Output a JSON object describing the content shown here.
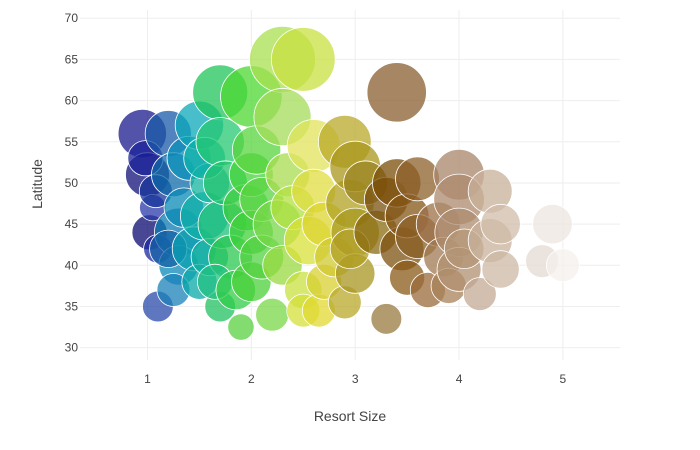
{
  "chart_data": {
    "type": "scatter",
    "title": "",
    "xlabel": "Resort Size",
    "ylabel": "Latitude",
    "xlim": [
      0.35,
      5.55
    ],
    "ylim": [
      28.5,
      71
    ],
    "xticks": [
      1,
      2,
      3,
      4,
      5
    ],
    "yticks": [
      30,
      35,
      40,
      45,
      50,
      55,
      60,
      65,
      70
    ],
    "grid": true,
    "legend": "none",
    "marker_opacity": 0.75,
    "marker_outline_color": "#ffffff",
    "color_scale_note": "marker color varies by resort size: navy/blue (1) -> teal (1.5) -> green (2) -> yellow (2.5-3) -> brown (3.5) -> tan/white (4-5)",
    "series": [
      {
        "points": [
          {
            "x": 0.95,
            "y": 56,
            "size": 2.2,
            "color": "#1a1a8c"
          },
          {
            "x": 1.0,
            "y": 51,
            "size": 2.0,
            "color": "#10107a"
          },
          {
            "x": 0.98,
            "y": 53,
            "size": 1.6,
            "color": "#1a2299"
          },
          {
            "x": 1.02,
            "y": 44,
            "size": 1.6,
            "color": "#0a0a70"
          },
          {
            "x": 1.05,
            "y": 47,
            "size": 1.2,
            "color": "#2a3aa8"
          },
          {
            "x": 1.1,
            "y": 42,
            "size": 1.3,
            "color": "#1e2aa0"
          },
          {
            "x": 1.1,
            "y": 35,
            "size": 1.4,
            "color": "#2a4aa8"
          },
          {
            "x": 1.08,
            "y": 49,
            "size": 1.5,
            "color": "#16349a"
          },
          {
            "x": 1.2,
            "y": 56,
            "size": 2.1,
            "color": "#1a5aa8"
          },
          {
            "x": 1.25,
            "y": 51,
            "size": 2.0,
            "color": "#0f6aa8"
          },
          {
            "x": 1.3,
            "y": 44,
            "size": 2.2,
            "color": "#0a7ab0"
          },
          {
            "x": 1.3,
            "y": 40,
            "size": 1.8,
            "color": "#0a88b8"
          },
          {
            "x": 1.25,
            "y": 37,
            "size": 1.5,
            "color": "#1a80b8"
          },
          {
            "x": 1.35,
            "y": 47,
            "size": 1.8,
            "color": "#0a8ab5"
          },
          {
            "x": 1.4,
            "y": 53,
            "size": 2.0,
            "color": "#0a90b8"
          },
          {
            "x": 1.2,
            "y": 42,
            "size": 1.7,
            "color": "#1560a5"
          },
          {
            "x": 1.45,
            "y": 42,
            "size": 2.0,
            "color": "#0aa0b0"
          },
          {
            "x": 1.5,
            "y": 57,
            "size": 2.2,
            "color": "#0aa8b8"
          },
          {
            "x": 1.5,
            "y": 38,
            "size": 1.6,
            "color": "#0aa8a8"
          },
          {
            "x": 1.55,
            "y": 46,
            "size": 2.2,
            "color": "#10b0a8"
          },
          {
            "x": 1.6,
            "y": 50,
            "size": 1.8,
            "color": "#14b4a0"
          },
          {
            "x": 1.6,
            "y": 41,
            "size": 1.7,
            "color": "#12b0a0"
          },
          {
            "x": 1.55,
            "y": 53,
            "size": 1.9,
            "color": "#0eb2a8"
          },
          {
            "x": 1.7,
            "y": 61,
            "size": 2.5,
            "color": "#20c45a"
          },
          {
            "x": 1.7,
            "y": 55,
            "size": 2.2,
            "color": "#24c870"
          },
          {
            "x": 1.7,
            "y": 35,
            "size": 1.4,
            "color": "#22c060"
          },
          {
            "x": 1.72,
            "y": 45,
            "size": 2.2,
            "color": "#1ec078"
          },
          {
            "x": 1.75,
            "y": 50,
            "size": 2.0,
            "color": "#22c46c"
          },
          {
            "x": 1.8,
            "y": 41,
            "size": 2.0,
            "color": "#2ac850"
          },
          {
            "x": 1.65,
            "y": 38,
            "size": 1.6,
            "color": "#20c080"
          },
          {
            "x": 1.85,
            "y": 37,
            "size": 1.8,
            "color": "#30cc48"
          },
          {
            "x": 1.9,
            "y": 32.5,
            "size": 1.2,
            "color": "#5ad040"
          },
          {
            "x": 1.95,
            "y": 47,
            "size": 2.1,
            "color": "#3ccc40"
          },
          {
            "x": 2.0,
            "y": 60.5,
            "size": 2.8,
            "color": "#4cd830"
          },
          {
            "x": 2.0,
            "y": 44,
            "size": 2.0,
            "color": "#40d038"
          },
          {
            "x": 2.0,
            "y": 51,
            "size": 2.0,
            "color": "#46d43a"
          },
          {
            "x": 2.0,
            "y": 38,
            "size": 1.8,
            "color": "#4ad038"
          },
          {
            "x": 2.05,
            "y": 54,
            "size": 2.2,
            "color": "#56d43c"
          },
          {
            "x": 2.1,
            "y": 41,
            "size": 2.0,
            "color": "#52d240"
          },
          {
            "x": 2.1,
            "y": 48,
            "size": 2.0,
            "color": "#5ad442"
          },
          {
            "x": 2.2,
            "y": 34,
            "size": 1.5,
            "color": "#7ad848"
          },
          {
            "x": 2.25,
            "y": 45,
            "size": 2.2,
            "color": "#78d84a"
          },
          {
            "x": 2.3,
            "y": 65,
            "size": 3.0,
            "color": "#a8e050"
          },
          {
            "x": 2.3,
            "y": 58,
            "size": 2.6,
            "color": "#a4dc58"
          },
          {
            "x": 2.3,
            "y": 40,
            "size": 1.8,
            "color": "#98da40"
          },
          {
            "x": 2.35,
            "y": 51,
            "size": 2.0,
            "color": "#a8dc50"
          },
          {
            "x": 2.4,
            "y": 47,
            "size": 2.0,
            "color": "#b4e040"
          },
          {
            "x": 2.5,
            "y": 65,
            "size": 2.9,
            "color": "#c8e040"
          },
          {
            "x": 2.5,
            "y": 37,
            "size": 1.7,
            "color": "#c8e040"
          },
          {
            "x": 2.5,
            "y": 34.5,
            "size": 1.5,
            "color": "#d4e03a"
          },
          {
            "x": 2.55,
            "y": 43,
            "size": 2.2,
            "color": "#d8e038"
          },
          {
            "x": 2.6,
            "y": 54.5,
            "size": 2.4,
            "color": "#e2e35a"
          },
          {
            "x": 2.6,
            "y": 49,
            "size": 2.0,
            "color": "#e0dc40"
          },
          {
            "x": 2.65,
            "y": 34.5,
            "size": 1.5,
            "color": "#e2d830"
          },
          {
            "x": 2.7,
            "y": 38,
            "size": 1.6,
            "color": "#d8d030"
          },
          {
            "x": 2.7,
            "y": 45,
            "size": 2.0,
            "color": "#dcd430"
          },
          {
            "x": 2.8,
            "y": 41,
            "size": 1.8,
            "color": "#d0c830"
          },
          {
            "x": 2.9,
            "y": 55,
            "size": 2.4,
            "color": "#b8a82a"
          },
          {
            "x": 2.9,
            "y": 35.5,
            "size": 1.5,
            "color": "#b8a828"
          },
          {
            "x": 2.95,
            "y": 47.5,
            "size": 2.2,
            "color": "#b0a020"
          },
          {
            "x": 3.0,
            "y": 52,
            "size": 2.3,
            "color": "#a8961a"
          },
          {
            "x": 3.0,
            "y": 44,
            "size": 2.2,
            "color": "#a89a20"
          },
          {
            "x": 3.0,
            "y": 39,
            "size": 1.8,
            "color": "#a89620"
          },
          {
            "x": 2.95,
            "y": 42,
            "size": 1.8,
            "color": "#b09e22"
          },
          {
            "x": 3.1,
            "y": 50,
            "size": 2.0,
            "color": "#9a8420"
          },
          {
            "x": 3.2,
            "y": 44,
            "size": 2.0,
            "color": "#8a6a10"
          },
          {
            "x": 3.3,
            "y": 33.5,
            "size": 1.4,
            "color": "#9a7a40"
          },
          {
            "x": 3.3,
            "y": 48,
            "size": 2.0,
            "color": "#7a5210"
          },
          {
            "x": 3.4,
            "y": 61,
            "size": 2.7,
            "color": "#8a5e30"
          },
          {
            "x": 3.4,
            "y": 50,
            "size": 2.2,
            "color": "#7a4e08"
          },
          {
            "x": 3.45,
            "y": 42,
            "size": 2.0,
            "color": "#7e5212"
          },
          {
            "x": 3.5,
            "y": 38.5,
            "size": 1.6,
            "color": "#8a5a18"
          },
          {
            "x": 3.5,
            "y": 46,
            "size": 2.0,
            "color": "#845616"
          },
          {
            "x": 3.6,
            "y": 50.5,
            "size": 2.0,
            "color": "#8e602a"
          },
          {
            "x": 3.6,
            "y": 43.5,
            "size": 2.0,
            "color": "#8a5e24"
          },
          {
            "x": 3.7,
            "y": 37,
            "size": 1.6,
            "color": "#9a6a3a"
          },
          {
            "x": 3.8,
            "y": 45,
            "size": 2.0,
            "color": "#9c7048"
          },
          {
            "x": 3.85,
            "y": 41,
            "size": 1.8,
            "color": "#a07a50"
          },
          {
            "x": 3.9,
            "y": 37.5,
            "size": 1.6,
            "color": "#a8825a"
          },
          {
            "x": 4.0,
            "y": 51,
            "size": 2.3,
            "color": "#a8866a"
          },
          {
            "x": 4.0,
            "y": 48,
            "size": 2.3,
            "color": "#ac8a6c"
          },
          {
            "x": 4.0,
            "y": 44,
            "size": 2.2,
            "color": "#ae8c70"
          },
          {
            "x": 4.0,
            "y": 39.5,
            "size": 2.0,
            "color": "#b09070"
          },
          {
            "x": 4.05,
            "y": 42,
            "size": 1.8,
            "color": "#b49676"
          },
          {
            "x": 4.2,
            "y": 36.5,
            "size": 1.5,
            "color": "#c4aa94"
          },
          {
            "x": 4.3,
            "y": 49,
            "size": 2.0,
            "color": "#c8b09a"
          },
          {
            "x": 4.3,
            "y": 43,
            "size": 2.0,
            "color": "#c8b29c"
          },
          {
            "x": 4.4,
            "y": 39.5,
            "size": 1.7,
            "color": "#ccb8a4"
          },
          {
            "x": 4.4,
            "y": 45,
            "size": 1.8,
            "color": "#d0bca8"
          },
          {
            "x": 4.8,
            "y": 40.5,
            "size": 1.5,
            "color": "#e4dad2"
          },
          {
            "x": 4.9,
            "y": 45,
            "size": 1.8,
            "color": "#ece6e0"
          },
          {
            "x": 5.0,
            "y": 40,
            "size": 1.5,
            "color": "#f4f0ec"
          }
        ]
      }
    ]
  }
}
